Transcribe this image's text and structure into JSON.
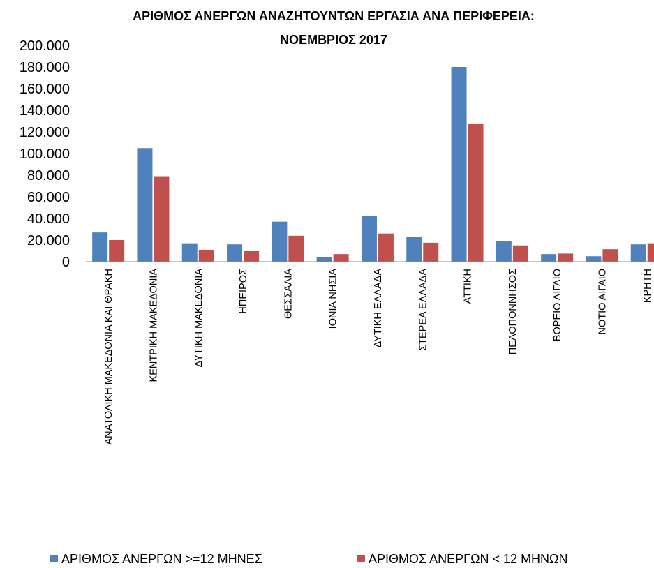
{
  "chart_data": {
    "type": "bar",
    "title": [
      "ΑΡΙΘΜΟΣ ΑΝΕΡΓΩΝ ΑΝΑΖΗΤΟΥΝΤΩΝ ΕΡΓΑΣΙΑ ΑΝΑ ΠΕΡΙΦΕΡΕΙΑ:",
      "ΝΟΕΜΒΡΙΟΣ 2017"
    ],
    "categories": [
      "ΑΝΑΤΟΛΙΚΗ ΜΑΚΕΔΟΝΙΑ ΚΑΙ ΘΡΑΚΗ",
      "ΚΕΝΤΡΙΚΗ ΜΑΚΕΔΟΝΙΑ",
      "ΔΥΤΙΚΗ ΜΑΚΕΔΟΝΙΑ",
      "ΗΠΕΙΡΟΣ",
      "ΘΕΣΣΑΛΙΑ",
      "ΙΟΝΙΑ ΝΗΣΙΑ",
      "ΔΥΤΙΚΗ ΕΛΛΑΔΑ",
      "ΣΤΕΡΕΑ ΕΛΛΑΔΑ",
      "ΑΤΤΙΚΗ",
      "ΠΕΛΟΠΟΝΝΗΣΟΣ",
      "ΒΟΡΕΙΟ ΑΙΓΑΙΟ",
      "ΝΟΤΙΟ ΑΙΓΑΙΟ",
      "ΚΡΗΤΗ"
    ],
    "series": [
      {
        "name": "ΑΡΙΘΜΟΣ ΑΝΕΡΓΩΝ >=12 ΜΗΝΕΣ",
        "color": "#4f81bd",
        "values": [
          27000,
          105000,
          17000,
          16000,
          37000,
          4500,
          42500,
          23000,
          180000,
          19000,
          7000,
          5000,
          16000
        ]
      },
      {
        "name": "ΑΡΙΘΜΟΣ ΑΝΕΡΓΩΝ < 12 ΜΗΝΩΝ",
        "color": "#c0504d",
        "values": [
          20000,
          79000,
          11000,
          10000,
          24000,
          7000,
          26000,
          17500,
          127500,
          15000,
          7500,
          11500,
          17000
        ]
      }
    ],
    "ylim": [
      0,
      200000
    ],
    "yticks": [
      0,
      {
        "value": 20000,
        "label": "20.000"
      },
      {
        "value": 40000,
        "label": "40.000"
      },
      {
        "value": 60000,
        "label": "60.000"
      },
      {
        "value": 80000,
        "label": "80.000"
      },
      {
        "value": 100000,
        "label": "100.000"
      },
      {
        "value": 120000,
        "label": "120.000"
      },
      {
        "value": 140000,
        "label": "140.000"
      },
      {
        "value": 160000,
        "label": "160.000"
      },
      {
        "value": 180000,
        "label": "180.000"
      },
      {
        "value": 200000,
        "label": "200.000"
      }
    ],
    "grid": false,
    "legend": "bottom"
  }
}
